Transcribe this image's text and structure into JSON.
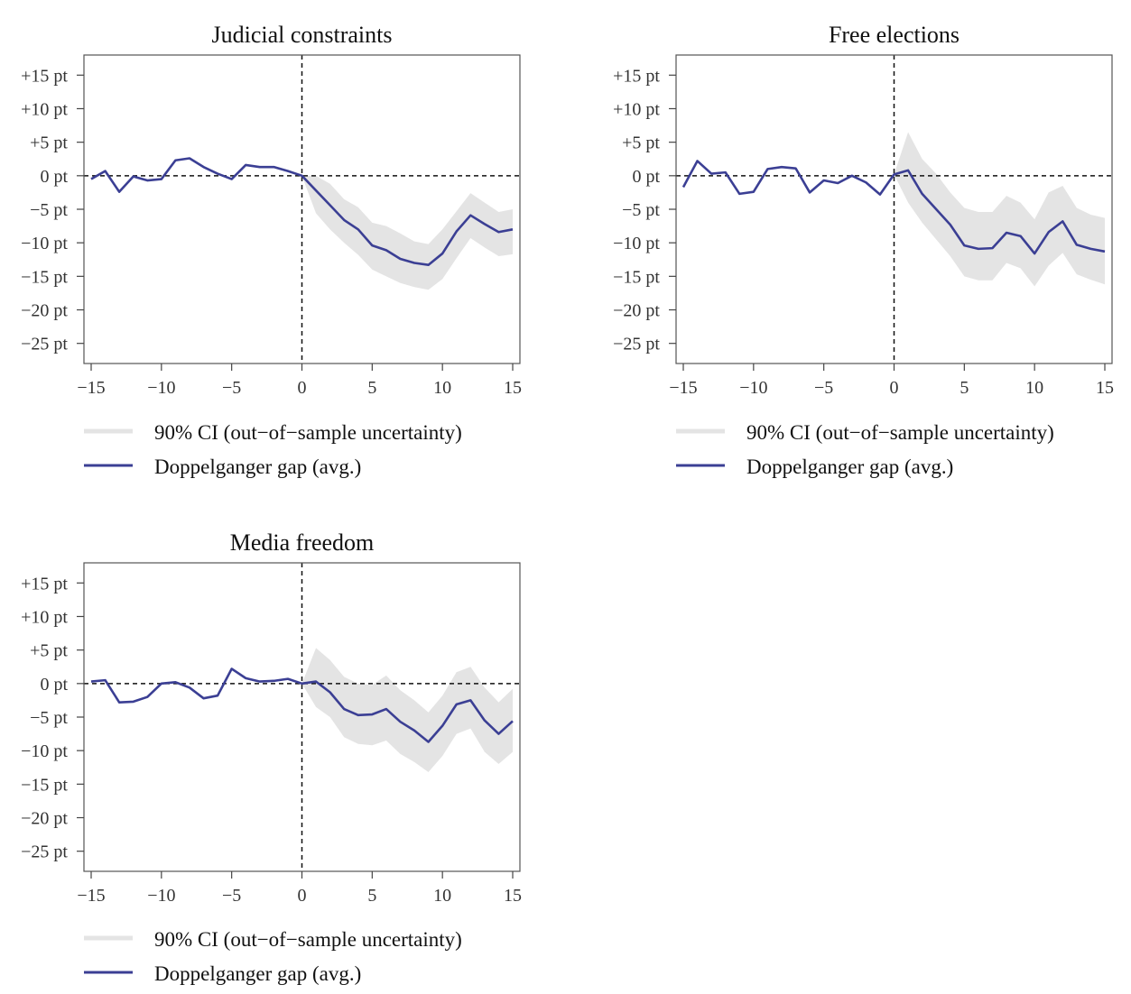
{
  "colors": {
    "line": "#3b3f94",
    "band": "#e4e4e4",
    "axis": "#444444",
    "frame": "#555555"
  },
  "chart_data": [
    {
      "type": "line",
      "title": "Judicial constraints",
      "xlabel": "",
      "ylabel": "",
      "xlim": [
        -15,
        15
      ],
      "ylim": [
        -28,
        18
      ],
      "x_ticks": [
        -15,
        -10,
        -5,
        0,
        5,
        10,
        15
      ],
      "x_tick_labels": [
        "−15",
        "−10",
        "−5",
        "0",
        "5",
        "10",
        "15"
      ],
      "y_ticks": [
        15,
        10,
        5,
        0,
        -5,
        -10,
        -15,
        -20,
        -25
      ],
      "y_tick_labels": [
        "+15 pt",
        "+10 pt",
        "+5 pt",
        "0 pt",
        "−5 pt",
        "−10 pt",
        "−15 pt",
        "−20 pt",
        "−25 pt"
      ],
      "vline_x": 0,
      "hline_y": 0,
      "grid": false,
      "x": [
        -15,
        -14,
        -13,
        -12,
        -11,
        -10,
        -9,
        -8,
        -7,
        -6,
        -5,
        -4,
        -3,
        -2,
        -1,
        0,
        1,
        2,
        3,
        4,
        5,
        6,
        7,
        8,
        9,
        10,
        11,
        12,
        13,
        14,
        15
      ],
      "series": [
        {
          "name": "Doppelganger gap (avg.)",
          "values": [
            -0.5,
            0.7,
            -2.4,
            -0.1,
            -0.7,
            -0.5,
            2.3,
            2.6,
            1.3,
            0.3,
            -0.5,
            1.6,
            1.3,
            1.3,
            0.7,
            0.0,
            -2.2,
            -4.4,
            -6.6,
            -8.0,
            -10.4,
            -11.1,
            -12.4,
            -13.0,
            -13.3,
            -11.6,
            -8.3,
            -5.9,
            -7.2,
            -8.4,
            -8.0
          ]
        }
      ],
      "ci": {
        "name": "90% CI (out−of−sample uncertainty)",
        "lower": [
          -0.5,
          0.7,
          -2.4,
          -0.1,
          -0.7,
          -0.5,
          2.3,
          2.6,
          1.3,
          0.3,
          -0.5,
          1.6,
          1.3,
          1.3,
          0.7,
          0.0,
          -5.6,
          -8.0,
          -10.0,
          -11.8,
          -14.0,
          -15.0,
          -16.0,
          -16.6,
          -17.0,
          -15.4,
          -12.3,
          -9.3,
          -10.7,
          -12.0,
          -11.7
        ],
        "upper": [
          -0.5,
          0.7,
          -2.4,
          -0.1,
          -0.7,
          -0.5,
          2.3,
          2.6,
          1.3,
          0.3,
          -0.5,
          1.6,
          1.3,
          1.3,
          0.7,
          0.0,
          0.0,
          -1.2,
          -3.5,
          -4.7,
          -7.0,
          -7.5,
          -8.6,
          -9.8,
          -10.2,
          -8.0,
          -5.3,
          -2.6,
          -4.0,
          -5.4,
          -5.0
        ]
      }
    },
    {
      "type": "line",
      "title": "Free elections",
      "xlabel": "",
      "ylabel": "",
      "xlim": [
        -15,
        15
      ],
      "ylim": [
        -28,
        18
      ],
      "x_ticks": [
        -15,
        -10,
        -5,
        0,
        5,
        10,
        15
      ],
      "x_tick_labels": [
        "−15",
        "−10",
        "−5",
        "0",
        "5",
        "10",
        "15"
      ],
      "y_ticks": [
        15,
        10,
        5,
        0,
        -5,
        -10,
        -15,
        -20,
        -25
      ],
      "y_tick_labels": [
        "+15 pt",
        "+10 pt",
        "+5 pt",
        "0 pt",
        "−5 pt",
        "−10 pt",
        "−15 pt",
        "−20 pt",
        "−25 pt"
      ],
      "vline_x": 0,
      "hline_y": 0,
      "grid": false,
      "x": [
        -15,
        -14,
        -13,
        -12,
        -11,
        -10,
        -9,
        -8,
        -7,
        -6,
        -5,
        -4,
        -3,
        -2,
        -1,
        0,
        1,
        2,
        3,
        4,
        5,
        6,
        7,
        8,
        9,
        10,
        11,
        12,
        13,
        14,
        15
      ],
      "series": [
        {
          "name": "Doppelganger gap (avg.)",
          "values": [
            -1.7,
            2.2,
            0.3,
            0.5,
            -2.7,
            -2.4,
            1.0,
            1.3,
            1.1,
            -2.5,
            -0.7,
            -1.1,
            0.0,
            -1.0,
            -2.8,
            0.2,
            0.8,
            -2.7,
            -5.0,
            -7.3,
            -10.4,
            -10.9,
            -10.8,
            -8.5,
            -9.0,
            -11.6,
            -8.4,
            -6.8,
            -10.3,
            -10.9,
            -11.3
          ]
        }
      ],
      "ci": {
        "name": "90% CI (out−of−sample uncertainty)",
        "lower": [
          -1.7,
          2.2,
          0.3,
          0.5,
          -2.7,
          -2.4,
          1.0,
          1.3,
          1.1,
          -2.5,
          -0.7,
          -1.1,
          0.0,
          -1.0,
          -2.8,
          0.2,
          -4.0,
          -7.0,
          -9.5,
          -12.0,
          -15.0,
          -15.6,
          -15.6,
          -13.0,
          -13.8,
          -16.5,
          -13.4,
          -11.5,
          -14.7,
          -15.5,
          -16.2
        ],
        "upper": [
          -1.7,
          2.2,
          0.3,
          0.5,
          -2.7,
          -2.4,
          1.0,
          1.3,
          1.1,
          -2.5,
          -0.7,
          -1.1,
          0.0,
          -1.0,
          -2.8,
          0.2,
          6.5,
          2.5,
          0.3,
          -2.5,
          -4.8,
          -5.4,
          -5.4,
          -3.0,
          -4.0,
          -6.5,
          -2.5,
          -1.5,
          -4.8,
          -5.8,
          -6.3
        ]
      }
    },
    {
      "type": "line",
      "title": "Media freedom",
      "xlabel": "",
      "ylabel": "",
      "xlim": [
        -15,
        15
      ],
      "ylim": [
        -28,
        18
      ],
      "x_ticks": [
        -15,
        -10,
        -5,
        0,
        5,
        10,
        15
      ],
      "x_tick_labels": [
        "−15",
        "−10",
        "−5",
        "0",
        "5",
        "10",
        "15"
      ],
      "y_ticks": [
        15,
        10,
        5,
        0,
        -5,
        -10,
        -15,
        -20,
        -25
      ],
      "y_tick_labels": [
        "+15 pt",
        "+10 pt",
        "+5 pt",
        "0 pt",
        "−5 pt",
        "−10 pt",
        "−15 pt",
        "−20 pt",
        "−25 pt"
      ],
      "vline_x": 0,
      "hline_y": 0,
      "grid": false,
      "x": [
        -15,
        -14,
        -13,
        -12,
        -11,
        -10,
        -9,
        -8,
        -7,
        -6,
        -5,
        -4,
        -3,
        -2,
        -1,
        0,
        1,
        2,
        3,
        4,
        5,
        6,
        7,
        8,
        9,
        10,
        11,
        12,
        13,
        14,
        15
      ],
      "series": [
        {
          "name": "Doppelganger gap (avg.)",
          "values": [
            0.3,
            0.5,
            -2.8,
            -2.7,
            -2.0,
            0.0,
            0.2,
            -0.6,
            -2.2,
            -1.8,
            2.2,
            0.8,
            0.3,
            0.4,
            0.7,
            0.0,
            0.3,
            -1.3,
            -3.8,
            -4.7,
            -4.6,
            -3.8,
            -5.7,
            -7.0,
            -8.7,
            -6.3,
            -3.1,
            -2.5,
            -5.5,
            -7.5,
            -5.6
          ]
        }
      ],
      "ci": {
        "name": "90% CI (out−of−sample uncertainty)",
        "lower": [
          0.3,
          0.5,
          -2.8,
          -2.7,
          -2.0,
          0.0,
          0.2,
          -0.6,
          -2.2,
          -1.8,
          2.2,
          0.8,
          0.3,
          0.4,
          0.7,
          0.0,
          -3.5,
          -5.0,
          -8.0,
          -9.0,
          -9.2,
          -8.5,
          -10.5,
          -11.7,
          -13.2,
          -10.8,
          -7.5,
          -6.7,
          -10.2,
          -12.0,
          -10.2
        ],
        "upper": [
          0.3,
          0.5,
          -2.8,
          -2.7,
          -2.0,
          0.0,
          0.2,
          -0.6,
          -2.2,
          -1.8,
          2.2,
          0.8,
          0.3,
          0.4,
          0.7,
          0.0,
          5.3,
          3.5,
          1.0,
          0.0,
          -0.2,
          1.2,
          -1.0,
          -2.5,
          -4.3,
          -1.8,
          1.7,
          2.5,
          -0.6,
          -2.8,
          -0.8
        ]
      }
    }
  ]
}
